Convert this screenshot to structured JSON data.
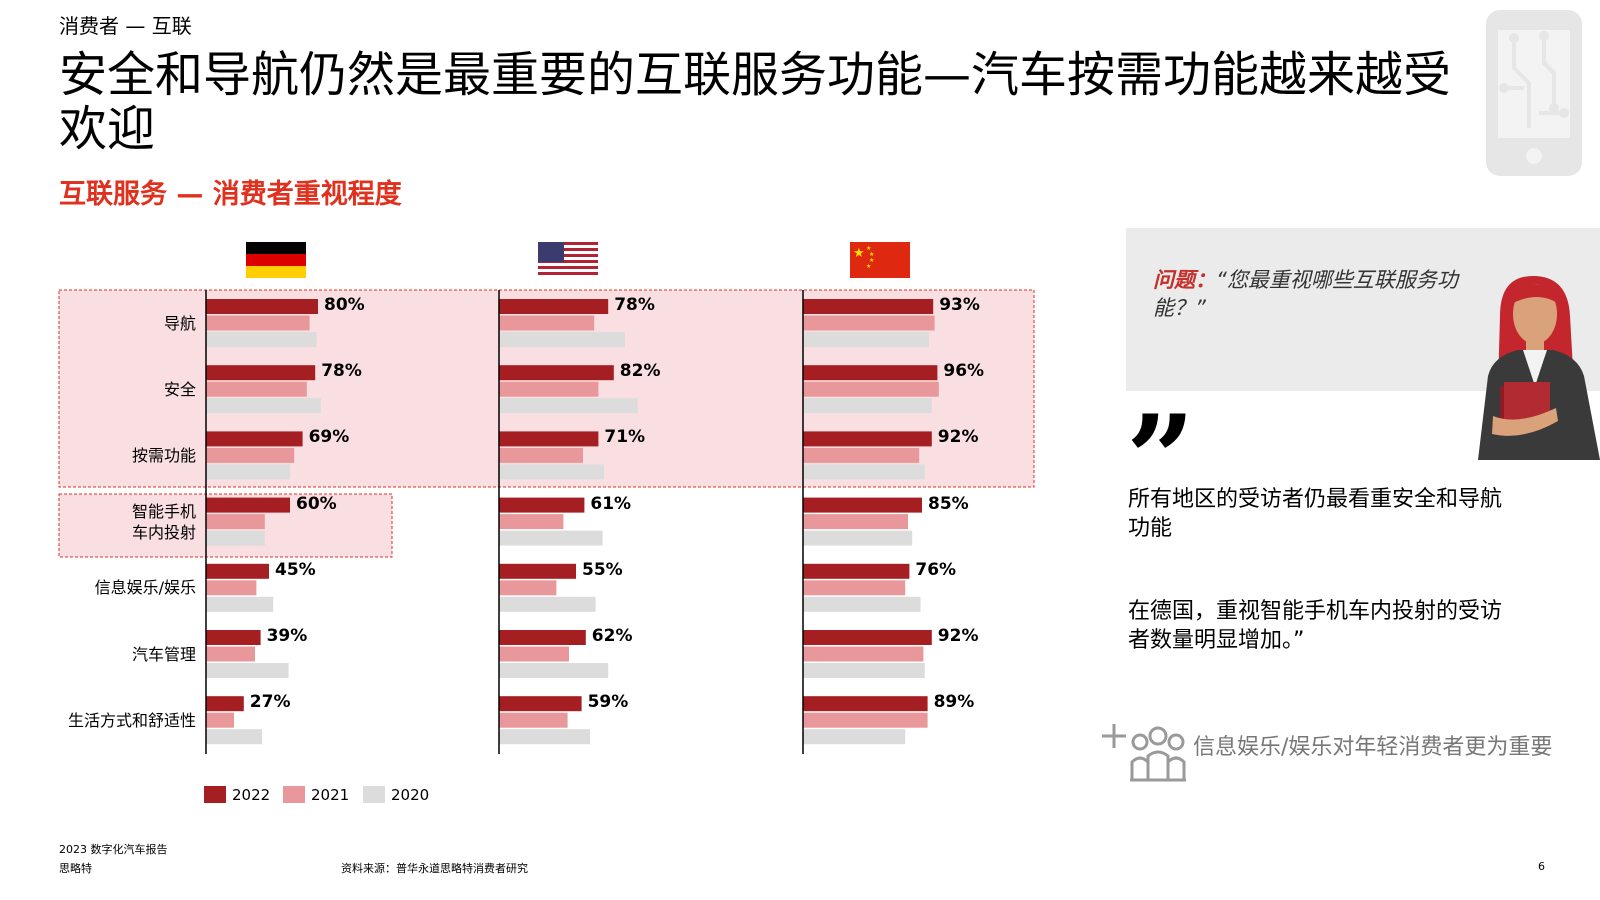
{
  "header": {
    "section": "消费者 — 互联",
    "title": "安全和导航仍然是最重要的互联服务功能—汽车按需功能越来越受欢迎",
    "subtitle": "互联服务 — 消费者重视程度"
  },
  "colors": {
    "y2022": "#a51e22",
    "y2021": "#e8989a",
    "y2020": "#dcdcdc",
    "highlight_bg": "#f9dfe2",
    "highlight_border": "#e0301e",
    "accent": "#e0301e"
  },
  "chart_data": {
    "type": "bar",
    "orientation": "horizontal",
    "panels": [
      "Germany",
      "USA",
      "China"
    ],
    "categories": [
      "导航",
      "安全",
      "按需功能",
      "智能手机\n车内投射",
      "信息娱乐/娱乐",
      "汽车管理",
      "生活方式和舒适性"
    ],
    "series": [
      {
        "name": "2022",
        "values": {
          "Germany": [
            80,
            78,
            69,
            60,
            45,
            39,
            27
          ],
          "USA": [
            78,
            82,
            71,
            61,
            55,
            62,
            59
          ],
          "China": [
            93,
            96,
            92,
            85,
            76,
            92,
            89
          ]
        }
      },
      {
        "name": "2021",
        "values": {
          "Germany": [
            74,
            72,
            63,
            42,
            36,
            35,
            20
          ],
          "USA": [
            68,
            71,
            60,
            46,
            41,
            50,
            49
          ],
          "China": [
            94,
            97,
            83,
            75,
            73,
            86,
            89
          ]
        }
      },
      {
        "name": "2020",
        "values": {
          "Germany": [
            79,
            82,
            60,
            42,
            48,
            59,
            40
          ],
          "USA": [
            90,
            99,
            75,
            74,
            69,
            78,
            65
          ],
          "China": [
            90,
            92,
            87,
            78,
            84,
            87,
            73
          ]
        }
      }
    ],
    "labels_2022": {
      "Germany": [
        "80%",
        "78%",
        "69%",
        "60%",
        "45%",
        "39%",
        "27%"
      ],
      "USA": [
        "78%",
        "82%",
        "71%",
        "61%",
        "55%",
        "62%",
        "59%"
      ],
      "China": [
        "93%",
        "96%",
        "92%",
        "85%",
        "76%",
        "92%",
        "89%"
      ]
    },
    "legend": [
      "2022",
      "2021",
      "2020"
    ],
    "legend_position": "bottom-left",
    "highlighted_groups": [
      [
        0,
        1,
        2
      ],
      [
        3
      ]
    ]
  },
  "sidebar": {
    "question_prefix": "问题：",
    "question": "“您最重视哪些互联服务功能？”",
    "quote_mark": "”",
    "quote1": "所有地区的受访者仍最看重安全和导航功能",
    "quote2": "在德国，重视智能手机车内投射的受访者数量明显增加。”",
    "tip": "信息娱乐/娱乐对年轻消费者更为重要"
  },
  "footer": {
    "report": "2023  数字化汽车报告",
    "brand": "思略特",
    "source": "资料来源：普华永道思略特消费者研究",
    "page": "6"
  }
}
